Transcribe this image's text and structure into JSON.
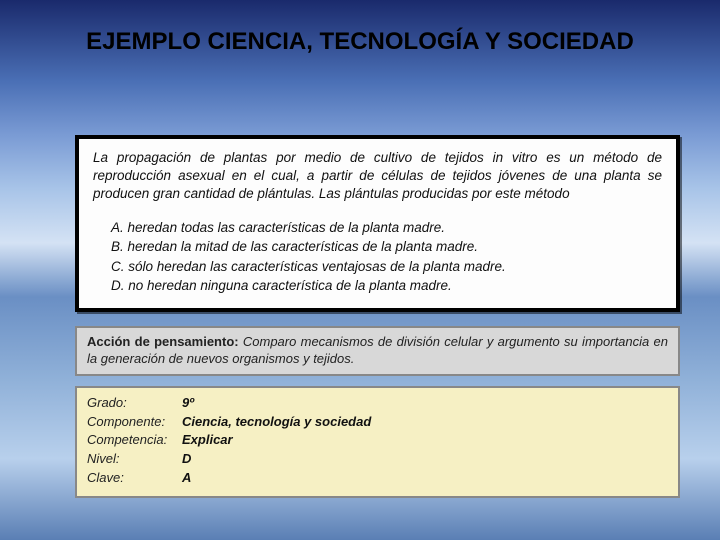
{
  "title": "EJEMPLO CIENCIA, TECNOLOGÍA Y SOCIEDAD",
  "question": {
    "stem": "La propagación de plantas por medio de cultivo de tejidos in vitro es un método de reproducción asexual en el cual, a partir de células de tejidos jóvenes de una planta se producen gran cantidad de plántulas. Las plántulas producidas por este método",
    "options": [
      {
        "label": "A.",
        "text": "heredan todas las características de la planta madre."
      },
      {
        "label": "B.",
        "text": "heredan la mitad de las características de la planta madre."
      },
      {
        "label": "C.",
        "text": "sólo heredan las características ventajosas de la planta madre."
      },
      {
        "label": "D.",
        "text": "no heredan ninguna característica de la planta madre."
      }
    ]
  },
  "accion": {
    "label": "Acción de pensamiento:",
    "text": " Comparo mecanismos de división celular y argumento su importancia en la generación de nuevos organismos y tejidos."
  },
  "meta": {
    "rows": [
      {
        "label": "Grado:",
        "value": "9º"
      },
      {
        "label": "Componente:",
        "value": "Ciencia, tecnología y sociedad"
      },
      {
        "label": "Competencia:",
        "value": "Explicar"
      },
      {
        "label": "Nivel:",
        "value": "D"
      },
      {
        "label": "Clave:",
        "value": "A"
      }
    ]
  },
  "colors": {
    "question_bg": "#fdfdfd",
    "question_border": "#000000",
    "accion_bg": "#d8d8d8",
    "accion_border": "#888888",
    "meta_bg": "#f6f0c4",
    "meta_border": "#888888",
    "text": "#111111"
  }
}
